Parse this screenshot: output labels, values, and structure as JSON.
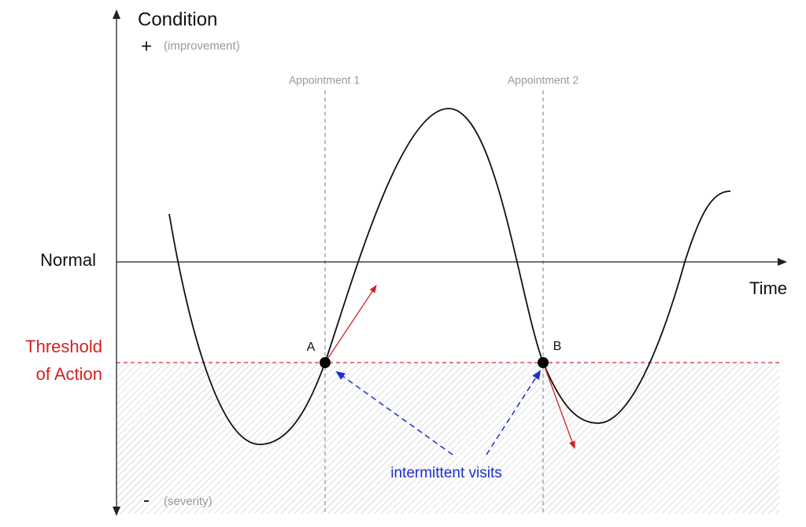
{
  "axes": {
    "y_label": "Condition",
    "top_sign": "+",
    "top_note": "(improvement)",
    "bottom_sign": "-",
    "bottom_note": "(severity)",
    "x_label": "Time"
  },
  "levels": {
    "normal": "Normal",
    "threshold": [
      "Threshold",
      "of Action"
    ]
  },
  "appointments": [
    "Appointment 1",
    "Appointment 2"
  ],
  "points": [
    "A",
    "B"
  ],
  "annotation": "intermittent visits"
}
